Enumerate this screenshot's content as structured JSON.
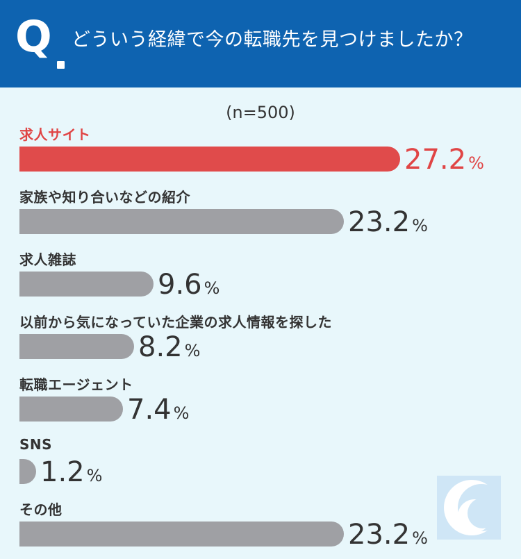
{
  "header": {
    "q_mark": "Q",
    "question": "どういう経緯で今の転職先を見つけましたか？"
  },
  "colors": {
    "header_bg": "#0e63b0",
    "background": "#e8f7fb",
    "highlight": "#e04b4b",
    "bar": "#9fa0a4"
  },
  "chart_data": {
    "type": "bar",
    "orientation": "horizontal",
    "title": "どういう経緯で今の転職先を見つけましたか？",
    "subtitle": "(n=500)",
    "unit": "%",
    "categories": [
      "求人サイト",
      "家族や知り合いなどの紹介",
      "求人雑誌",
      "以前から気になっていた企業の求人情報を探した",
      "転職エージェント",
      "SNS",
      "その他"
    ],
    "values": [
      27.2,
      23.2,
      9.6,
      8.2,
      7.4,
      1.2,
      23.2
    ],
    "value_labels": [
      "27.2",
      "23.2",
      "9.6",
      "8.2",
      "7.4",
      "1.2",
      "23.2"
    ],
    "highlight_index": 0,
    "xlim": [
      0,
      27.2
    ]
  }
}
